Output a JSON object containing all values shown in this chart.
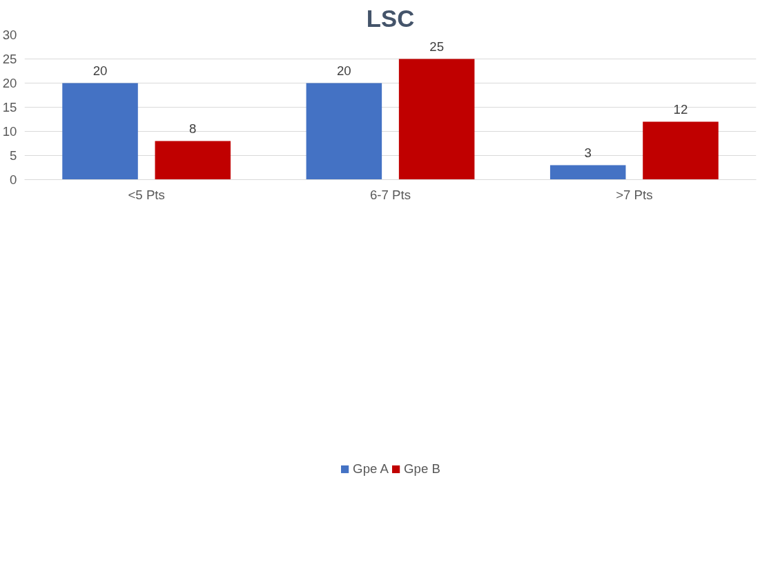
{
  "chart_data": {
    "type": "bar",
    "title": "LSC",
    "categories": [
      "<5 Pts",
      "6-7 Pts",
      ">7 Pts"
    ],
    "series": [
      {
        "name": "Gpe A",
        "color": "#4472c4",
        "values": [
          20,
          20,
          3
        ]
      },
      {
        "name": "Gpe B",
        "color": "#c00000",
        "values": [
          8,
          25,
          12
        ]
      }
    ],
    "ylim": [
      0,
      30
    ],
    "yticks": [
      0,
      5,
      10,
      15,
      20,
      25,
      30
    ],
    "grid": "y",
    "legend": "bottom",
    "data_labels": true
  }
}
